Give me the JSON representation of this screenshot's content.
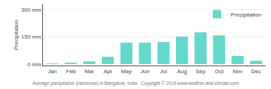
{
  "chart_data": {
    "type": "bar",
    "categories": [
      "Jan",
      "Feb",
      "Mar",
      "Apr",
      "May",
      "Jun",
      "Jul",
      "Aug",
      "Sep",
      "Oct",
      "Nov",
      "Dec"
    ],
    "series": [
      {
        "name": "Precipitation",
        "color": "#64d8cb",
        "values": [
          3,
          8,
          15,
          40,
          118,
          118,
          122,
          152,
          175,
          158,
          45,
          18
        ]
      }
    ],
    "ylabel": "Precipitation",
    "xlabel": "Average precipitation (rain/snow) in Bangalore, India   Copyright © 2019 www.weather-and-climate.com",
    "ylim": [
      -8,
      330
    ],
    "yticks": [
      {
        "value": 0,
        "label": "0 mm"
      },
      {
        "value": 150,
        "label": "150 mm"
      },
      {
        "value": 300,
        "label": "300 mm"
      }
    ],
    "grid": true,
    "legend": "upper right"
  }
}
